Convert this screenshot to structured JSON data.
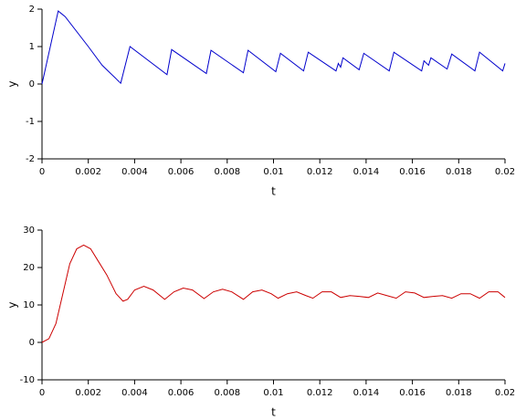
{
  "chart_data": [
    {
      "type": "line",
      "xlabel": "t",
      "ylabel": "y",
      "x": [
        0,
        0.0007,
        0.001,
        0.002,
        0.0026,
        0.0034,
        0.0038,
        0.0054,
        0.0056,
        0.0071,
        0.0073,
        0.0087,
        0.0089,
        0.0101,
        0.0103,
        0.0113,
        0.0115,
        0.0127,
        0.0128,
        0.0129,
        0.013,
        0.0137,
        0.0139,
        0.015,
        0.0152,
        0.0164,
        0.0165,
        0.0167,
        0.0168,
        0.0175,
        0.0177,
        0.0187,
        0.0189,
        0.0199,
        0.02
      ],
      "series": [
        {
          "color": "#0000cc",
          "values": [
            0,
            1.95,
            1.8,
            1.0,
            0.5,
            0.02,
            1.0,
            0.25,
            0.92,
            0.28,
            0.9,
            0.3,
            0.9,
            0.33,
            0.82,
            0.35,
            0.85,
            0.35,
            0.55,
            0.45,
            0.7,
            0.38,
            0.82,
            0.35,
            0.85,
            0.35,
            0.62,
            0.5,
            0.7,
            0.4,
            0.8,
            0.35,
            0.85,
            0.35,
            0.55
          ]
        }
      ],
      "xlim": [
        0,
        0.02
      ],
      "ylim": [
        -2,
        2
      ],
      "xticks": [
        0,
        0.002,
        0.004,
        0.006,
        0.008,
        0.01,
        0.012,
        0.014,
        0.016,
        0.018,
        0.02
      ],
      "yticks": [
        -2,
        -1,
        0,
        1,
        2
      ]
    },
    {
      "type": "line",
      "xlabel": "t",
      "ylabel": "y",
      "x": [
        0,
        0.0003,
        0.0006,
        0.0009,
        0.0012,
        0.0015,
        0.0018,
        0.0021,
        0.0024,
        0.0028,
        0.0032,
        0.0035,
        0.0037,
        0.004,
        0.0044,
        0.0048,
        0.0053,
        0.0057,
        0.0061,
        0.0065,
        0.007,
        0.0074,
        0.0078,
        0.0082,
        0.0087,
        0.0091,
        0.0095,
        0.0099,
        0.0102,
        0.0106,
        0.011,
        0.0114,
        0.0117,
        0.0121,
        0.0125,
        0.0129,
        0.0133,
        0.0137,
        0.0141,
        0.0145,
        0.0149,
        0.0153,
        0.0157,
        0.0161,
        0.0165,
        0.0169,
        0.0173,
        0.0177,
        0.0181,
        0.0185,
        0.0189,
        0.0193,
        0.0197,
        0.02
      ],
      "series": [
        {
          "color": "#cc0000",
          "values": [
            0,
            1,
            5,
            13,
            21,
            25,
            26,
            25,
            22,
            18,
            13,
            11,
            11.5,
            14,
            15,
            14,
            11.5,
            13.5,
            14.5,
            14,
            11.7,
            13.5,
            14.2,
            13.5,
            11.5,
            13.5,
            14,
            13,
            11.8,
            13,
            13.5,
            12.5,
            11.8,
            13.5,
            13.5,
            12,
            12.5,
            12.3,
            12,
            13.2,
            12.5,
            11.8,
            13.5,
            13.2,
            12,
            12.3,
            12.5,
            11.8,
            13,
            13,
            11.8,
            13.5,
            13.5,
            12
          ]
        }
      ],
      "xlim": [
        0,
        0.02
      ],
      "ylim": [
        -10,
        30
      ],
      "xticks": [
        0,
        0.002,
        0.004,
        0.006,
        0.008,
        0.01,
        0.012,
        0.014,
        0.016,
        0.018,
        0.02
      ],
      "yticks": [
        -10,
        0,
        10,
        20,
        30
      ]
    }
  ]
}
